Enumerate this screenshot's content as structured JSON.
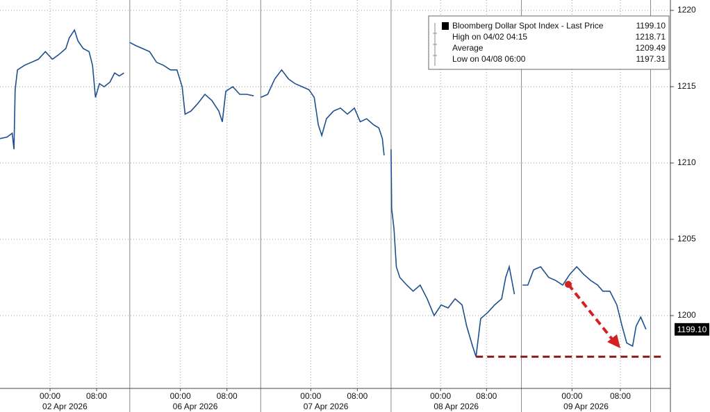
{
  "chart_data": {
    "type": "line",
    "x": [
      0,
      1.2,
      2.1,
      2.4,
      2.6,
      3.0,
      4.2,
      5.4,
      6.6,
      7.8,
      9.0,
      10.1,
      11.3,
      11.9,
      12.8,
      13.4,
      14.3,
      15.3,
      15.9,
      16.4,
      17.1,
      17.9,
      18.9,
      19.7,
      20.5,
      21.3,
      21.9,
      22.3,
      23.3,
      24.5,
      25.7,
      26.9,
      28.1,
      29.3,
      30.4,
      31.3,
      31.8,
      32.8,
      34.0,
      35.2,
      36.4,
      37.6,
      38.2,
      38.8,
      40.0,
      41.2,
      42.4,
      43.6,
      44.2,
      44.8,
      46.0,
      47.2,
      48.4,
      49.6,
      50.7,
      51.9,
      53.1,
      54.0,
      54.7,
      55.3,
      56.1,
      57.3,
      58.5,
      59.7,
      60.9,
      61.9,
      63.0,
      64.2,
      65.1,
      65.7,
      66.0,
      66.6,
      67.2,
      67.3,
      67.7,
      68.1,
      68.7,
      69.9,
      71.0,
      72.2,
      73.4,
      74.6,
      75.8,
      77.0,
      78.2,
      79.4,
      80.2,
      81.2,
      81.8,
      82.6,
      83.8,
      85.0,
      86.2,
      86.9,
      87.5,
      88.1,
      88.4,
      89.1,
      89.8,
      90.7,
      91.7,
      92.9,
      94.3,
      95.5,
      96.7,
      97.9,
      99.1,
      100.3,
      101.5,
      102.7,
      103.6,
      104.8,
      106.0,
      106.9,
      107.7,
      108.7,
      109.3,
      110.1,
      111.0
    ],
    "series": [
      {
        "name": "Bloomberg Dollar Spot Index - Last Price",
        "color": "#1d4f8f",
        "values": [
          1211.6,
          1211.7,
          1211.95,
          1210.9,
          1214.8,
          1216.1,
          1216.4,
          1216.6,
          1216.8,
          1217.3,
          1216.8,
          1217.1,
          1217.5,
          1218.2,
          1218.71,
          1218.0,
          1217.5,
          1217.3,
          1216.4,
          1214.3,
          1215.2,
          1215.0,
          1215.3,
          1215.9,
          1215.7,
          1215.9,
          null,
          1217.9,
          1217.7,
          1217.5,
          1217.3,
          1216.6,
          1216.4,
          1216.1,
          1216.1,
          1215.0,
          1213.2,
          1213.4,
          1213.9,
          1214.5,
          1214.1,
          1213.4,
          1212.7,
          1214.7,
          1215.0,
          1214.5,
          1214.5,
          1214.4,
          null,
          1214.3,
          1214.5,
          1215.5,
          1216.1,
          1215.5,
          1215.2,
          1215.0,
          1214.8,
          1214.3,
          1212.5,
          1211.8,
          1212.9,
          1213.4,
          1213.6,
          1213.2,
          1213.6,
          1212.7,
          1212.9,
          1212.5,
          1212.3,
          1211.6,
          1210.5,
          null,
          1210.9,
          1207.0,
          1205.7,
          1203.2,
          1202.5,
          1202.0,
          1201.6,
          1202.0,
          1201.1,
          1200.0,
          1200.7,
          1200.5,
          1201.1,
          1200.7,
          1199.3,
          1198.0,
          1197.31,
          1199.8,
          1200.2,
          1200.7,
          1201.1,
          1202.5,
          1203.2,
          1202.0,
          1201.4,
          null,
          1202.0,
          1202.0,
          1203.0,
          1203.2,
          1202.5,
          1202.3,
          1202.0,
          1202.7,
          1203.2,
          1202.7,
          1202.3,
          1202.0,
          1201.6,
          1201.6,
          1200.7,
          1199.3,
          1198.2,
          1198.0,
          1199.3,
          1199.9,
          1199.1
        ]
      }
    ],
    "xlim": [
      0,
      115.2
    ],
    "xticks": [
      {
        "value": 8.6,
        "label": "00:00"
      },
      {
        "value": 16.6,
        "label": "08:00"
      },
      {
        "value": 31.0,
        "label": "00:00"
      },
      {
        "value": 39.0,
        "label": "08:00"
      },
      {
        "value": 53.4,
        "label": "00:00"
      },
      {
        "value": 61.4,
        "label": "08:00"
      },
      {
        "value": 75.7,
        "label": "00:00"
      },
      {
        "value": 83.6,
        "label": "08:00"
      },
      {
        "value": 98.3,
        "label": "00:00"
      },
      {
        "value": 106.6,
        "label": "08:00"
      }
    ],
    "x_groups": [
      {
        "label": "02 Apr 2026",
        "range": [
          0,
          22.3
        ]
      },
      {
        "label": "06 Apr 2026",
        "range": [
          22.3,
          44.8
        ]
      },
      {
        "label": "07 Apr 2026",
        "range": [
          44.8,
          67.2
        ]
      },
      {
        "label": "08 Apr 2026",
        "range": [
          67.2,
          89.6
        ]
      },
      {
        "label": "09 Apr 2026",
        "range": [
          89.6,
          111.8
        ]
      }
    ],
    "ylim": [
      1195.23,
      1220.68
    ],
    "yticks": [
      1200,
      1205,
      1210,
      1215,
      1220
    ],
    "grid": true,
    "last_price": {
      "value": 1199.1,
      "label": "1199.10"
    },
    "stats": [
      {
        "name": "High on 04/02 04:15",
        "value": 1218.71
      },
      {
        "name": "Average",
        "value": 1209.49
      },
      {
        "name": "Low on 04/08 06:00",
        "value": 1197.31
      }
    ]
  }
}
